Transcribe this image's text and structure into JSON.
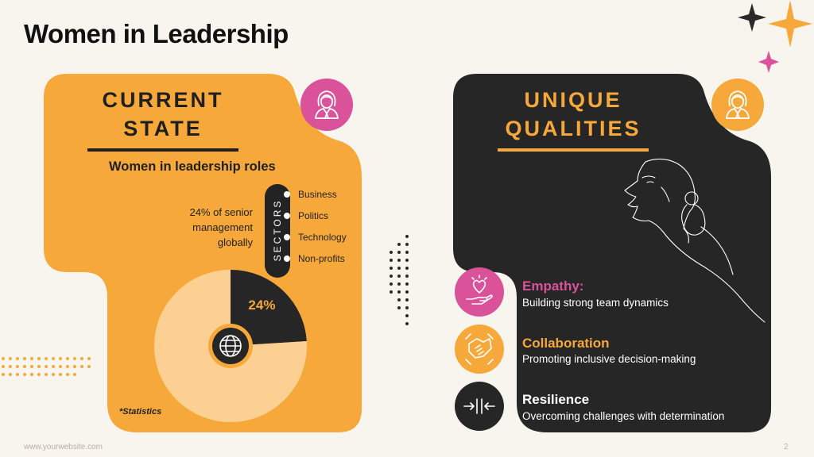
{
  "slide": {
    "title": "Women in Leadership",
    "footer_url": "www.yourwebsite.com",
    "page_number": "2"
  },
  "current_state": {
    "heading_line1": "CURRENT",
    "heading_line2": "STATE",
    "subheading": "Women in leadership roles",
    "stat_line1": "24% of senior",
    "stat_line2": "management",
    "stat_line3": "globally",
    "sectors_label": "SECTORS",
    "sectors": [
      "Business",
      "Politics",
      "Technology",
      "Non-profits"
    ],
    "note": "*Statistics"
  },
  "chart_data": {
    "type": "pie",
    "categories": [
      "",
      ""
    ],
    "values": [
      24,
      76
    ],
    "data_labels": [
      "24%",
      ""
    ],
    "colors": [
      "#262626",
      "#fbd092"
    ]
  },
  "unique_qualities": {
    "heading_line1": "UNIQUE",
    "heading_line2": "QUALITIES",
    "items": [
      {
        "title": "Empathy:",
        "desc": "Building strong team dynamics",
        "icon": "heart-hand-icon",
        "color": "#d9529a"
      },
      {
        "title": "Collaboration",
        "desc": "Promoting inclusive decision-making",
        "icon": "handshake-icon",
        "color": "#f6a93a"
      },
      {
        "title": "Resilience",
        "desc": "Overcoming challenges with determination",
        "icon": "arrows-in-icon",
        "color": "#ffffff"
      }
    ]
  },
  "colors": {
    "orange": "#f6a93a",
    "pink": "#d9529a",
    "dark": "#262626",
    "background": "#f8f4ee",
    "light_orange": "#fbd092"
  }
}
